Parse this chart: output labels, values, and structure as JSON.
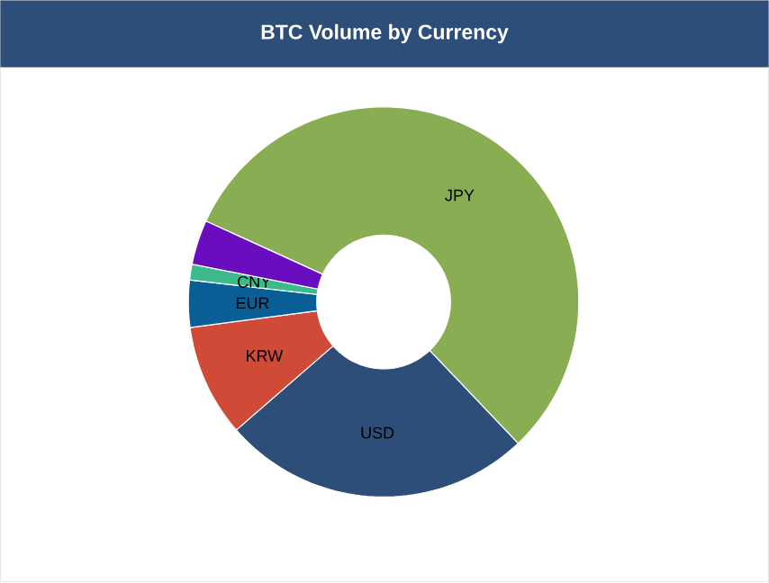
{
  "chart_data": {
    "type": "donut",
    "title": "BTC Volume by Currency",
    "categories": [
      "JPY",
      "USD",
      "KRW",
      "EUR",
      "CNY",
      null
    ],
    "values": [
      56.1,
      25.7,
      9.3,
      3.9,
      1.3,
      3.7
    ],
    "colors": [
      "#88ad52",
      "#2e4e7a",
      "#cf4a37",
      "#0a5e96",
      "#3cba8c",
      "#6a0dbf"
    ]
  }
}
